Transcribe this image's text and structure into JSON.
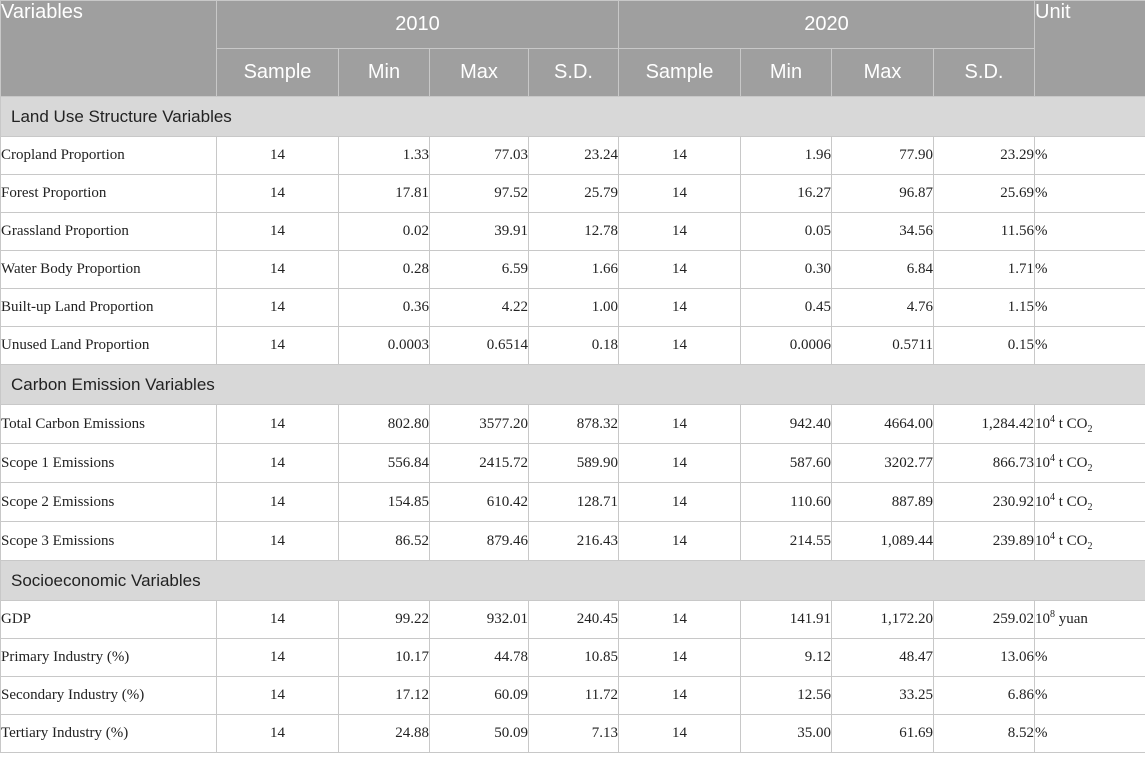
{
  "header": {
    "variables": "Variables",
    "unit": "Unit",
    "years": [
      "2010",
      "2020"
    ],
    "subcolumns": [
      "Sample",
      "Min",
      "Max",
      "S.D."
    ]
  },
  "sections": [
    {
      "title": "Land Use Structure Variables",
      "rows": [
        {
          "name": "Cropland Proportion",
          "v2010": [
            "14",
            "1.33",
            "77.03",
            "23.24"
          ],
          "v2020": [
            "14",
            "1.96",
            "77.90",
            "23.29"
          ],
          "unit": {
            "base": "%",
            "sup": "",
            "mid": "",
            "sub": ""
          }
        },
        {
          "name": "Forest Proportion",
          "v2010": [
            "14",
            "17.81",
            "97.52",
            "25.79"
          ],
          "v2020": [
            "14",
            "16.27",
            "96.87",
            "25.69"
          ],
          "unit": {
            "base": "%",
            "sup": "",
            "mid": "",
            "sub": ""
          }
        },
        {
          "name": "Grassland Proportion",
          "v2010": [
            "14",
            "0.02",
            "39.91",
            "12.78"
          ],
          "v2020": [
            "14",
            "0.05",
            "34.56",
            "11.56"
          ],
          "unit": {
            "base": "%",
            "sup": "",
            "mid": "",
            "sub": ""
          }
        },
        {
          "name": "Water Body Proportion",
          "v2010": [
            "14",
            "0.28",
            "6.59",
            "1.66"
          ],
          "v2020": [
            "14",
            "0.30",
            "6.84",
            "1.71"
          ],
          "unit": {
            "base": "%",
            "sup": "",
            "mid": "",
            "sub": ""
          }
        },
        {
          "name": "Built-up Land Proportion",
          "v2010": [
            "14",
            "0.36",
            "4.22",
            "1.00"
          ],
          "v2020": [
            "14",
            "0.45",
            "4.76",
            "1.15"
          ],
          "unit": {
            "base": "%",
            "sup": "",
            "mid": "",
            "sub": ""
          }
        },
        {
          "name": "Unused Land Proportion",
          "v2010": [
            "14",
            "0.0003",
            "0.6514",
            "0.18"
          ],
          "v2020": [
            "14",
            "0.0006",
            "0.5711",
            "0.15"
          ],
          "unit": {
            "base": "%",
            "sup": "",
            "mid": "",
            "sub": ""
          }
        }
      ]
    },
    {
      "title": "Carbon Emission Variables",
      "rows": [
        {
          "name": "Total Carbon Emissions",
          "v2010": [
            "14",
            "802.80",
            "3577.20",
            "878.32"
          ],
          "v2020": [
            "14",
            "942.40",
            "4664.00",
            "1,284.42"
          ],
          "unit": {
            "base": "10",
            "sup": "4",
            "mid": " t CO",
            "sub": "2"
          }
        },
        {
          "name": "Scope 1 Emissions",
          "v2010": [
            "14",
            "556.84",
            "2415.72",
            "589.90"
          ],
          "v2020": [
            "14",
            "587.60",
            "3202.77",
            "866.73"
          ],
          "unit": {
            "base": "10",
            "sup": "4",
            "mid": " t CO",
            "sub": "2"
          }
        },
        {
          "name": "Scope 2 Emissions",
          "v2010": [
            "14",
            "154.85",
            "610.42",
            "128.71"
          ],
          "v2020": [
            "14",
            "110.60",
            "887.89",
            "230.92"
          ],
          "unit": {
            "base": "10",
            "sup": "4",
            "mid": " t CO",
            "sub": "2"
          }
        },
        {
          "name": "Scope 3 Emissions",
          "v2010": [
            "14",
            "86.52",
            "879.46",
            "216.43"
          ],
          "v2020": [
            "14",
            "214.55",
            "1,089.44",
            "239.89"
          ],
          "unit": {
            "base": "10",
            "sup": "4",
            "mid": " t CO",
            "sub": "2"
          }
        }
      ]
    },
    {
      "title": "Socioeconomic Variables",
      "rows": [
        {
          "name": "GDP",
          "v2010": [
            "14",
            "99.22",
            "932.01",
            "240.45"
          ],
          "v2020": [
            "14",
            "141.91",
            "1,172.20",
            "259.02"
          ],
          "unit": {
            "base": "10",
            "sup": "8",
            "mid": " yuan",
            "sub": ""
          }
        },
        {
          "name": "Primary Industry (%)",
          "v2010": [
            "14",
            "10.17",
            "44.78",
            "10.85"
          ],
          "v2020": [
            "14",
            "9.12",
            "48.47",
            "13.06"
          ],
          "unit": {
            "base": "%",
            "sup": "",
            "mid": "",
            "sub": ""
          }
        },
        {
          "name": "Secondary Industry (%)",
          "v2010": [
            "14",
            "17.12",
            "60.09",
            "11.72"
          ],
          "v2020": [
            "14",
            "12.56",
            "33.25",
            "6.86"
          ],
          "unit": {
            "base": "%",
            "sup": "",
            "mid": "",
            "sub": ""
          }
        },
        {
          "name": "Tertiary Industry (%)",
          "v2010": [
            "14",
            "24.88",
            "50.09",
            "7.13"
          ],
          "v2020": [
            "14",
            "35.00",
            "61.69",
            "8.52"
          ],
          "unit": {
            "base": "%",
            "sup": "",
            "mid": "",
            "sub": ""
          }
        }
      ]
    }
  ]
}
